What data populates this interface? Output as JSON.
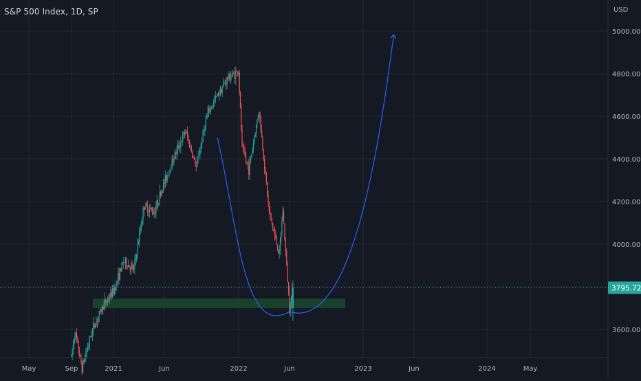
{
  "header": {
    "symbol_title": "S&P 500 Index, 1D, SP"
  },
  "price_axis": {
    "currency": "USD",
    "ticks": [
      "5000.00",
      "4800.00",
      "4600.00",
      "4400.00",
      "4200.00",
      "4000.00",
      "3600.00"
    ],
    "last_price_label": "3795.72"
  },
  "time_axis": {
    "labels": [
      "May",
      "Sep",
      "2021",
      "Jun",
      "2022",
      "Jun",
      "2023",
      "Jun",
      "2024",
      "May"
    ]
  },
  "colors": {
    "background": "#151924",
    "grid": "#232734",
    "up": "#26a69a",
    "down": "#ef5350",
    "curve": "#2962ff",
    "zone": "#1b4d2e",
    "last_price": "#26a69a"
  },
  "chart_data": {
    "type": "candlestick",
    "symbol": "S&P 500 Index",
    "interval": "1D",
    "ylim": [
      3460,
      5100
    ],
    "x": [
      "2020-05",
      "2020-09",
      "2021-01",
      "2021-06",
      "2022-01",
      "2022-06",
      "2023-01",
      "2023-06",
      "2024-01",
      "2024-05"
    ],
    "price_path": [
      {
        "date": "2020-09",
        "close": 3470
      },
      {
        "date": "2020-09",
        "close": 3590
      },
      {
        "date": "2020-10",
        "close": 3420
      },
      {
        "date": "2020-11",
        "close": 3600
      },
      {
        "date": "2020-12",
        "close": 3710
      },
      {
        "date": "2021-01",
        "close": 3780
      },
      {
        "date": "2021-02",
        "close": 3920
      },
      {
        "date": "2021-03",
        "close": 3880
      },
      {
        "date": "2021-04",
        "close": 4180
      },
      {
        "date": "2021-05",
        "close": 4150
      },
      {
        "date": "2021-06",
        "close": 4290
      },
      {
        "date": "2021-07",
        "close": 4420
      },
      {
        "date": "2021-08",
        "close": 4530
      },
      {
        "date": "2021-09",
        "close": 4360
      },
      {
        "date": "2021-10",
        "close": 4600
      },
      {
        "date": "2021-11",
        "close": 4700
      },
      {
        "date": "2021-12",
        "close": 4780
      },
      {
        "date": "2022-01",
        "close": 4810
      },
      {
        "date": "2022-01",
        "close": 4450
      },
      {
        "date": "2022-02",
        "close": 4350
      },
      {
        "date": "2022-03",
        "close": 4630
      },
      {
        "date": "2022-04",
        "close": 4150
      },
      {
        "date": "2022-05",
        "close": 3950
      },
      {
        "date": "2022-05",
        "close": 4160
      },
      {
        "date": "2022-06",
        "close": 3700
      },
      {
        "date": "2022-06",
        "close": 3795.72
      }
    ],
    "last_price": 3795.72,
    "support_zone": {
      "from_date": "2021-01",
      "to_date": "2022-10",
      "low": 3700,
      "high": 3745
    },
    "projection_curve": [
      {
        "date": "2021-11",
        "price": 4500
      },
      {
        "date": "2022-06",
        "price": 3700
      },
      {
        "date": "2023-04",
        "price": 4980
      }
    ],
    "grid": true
  }
}
